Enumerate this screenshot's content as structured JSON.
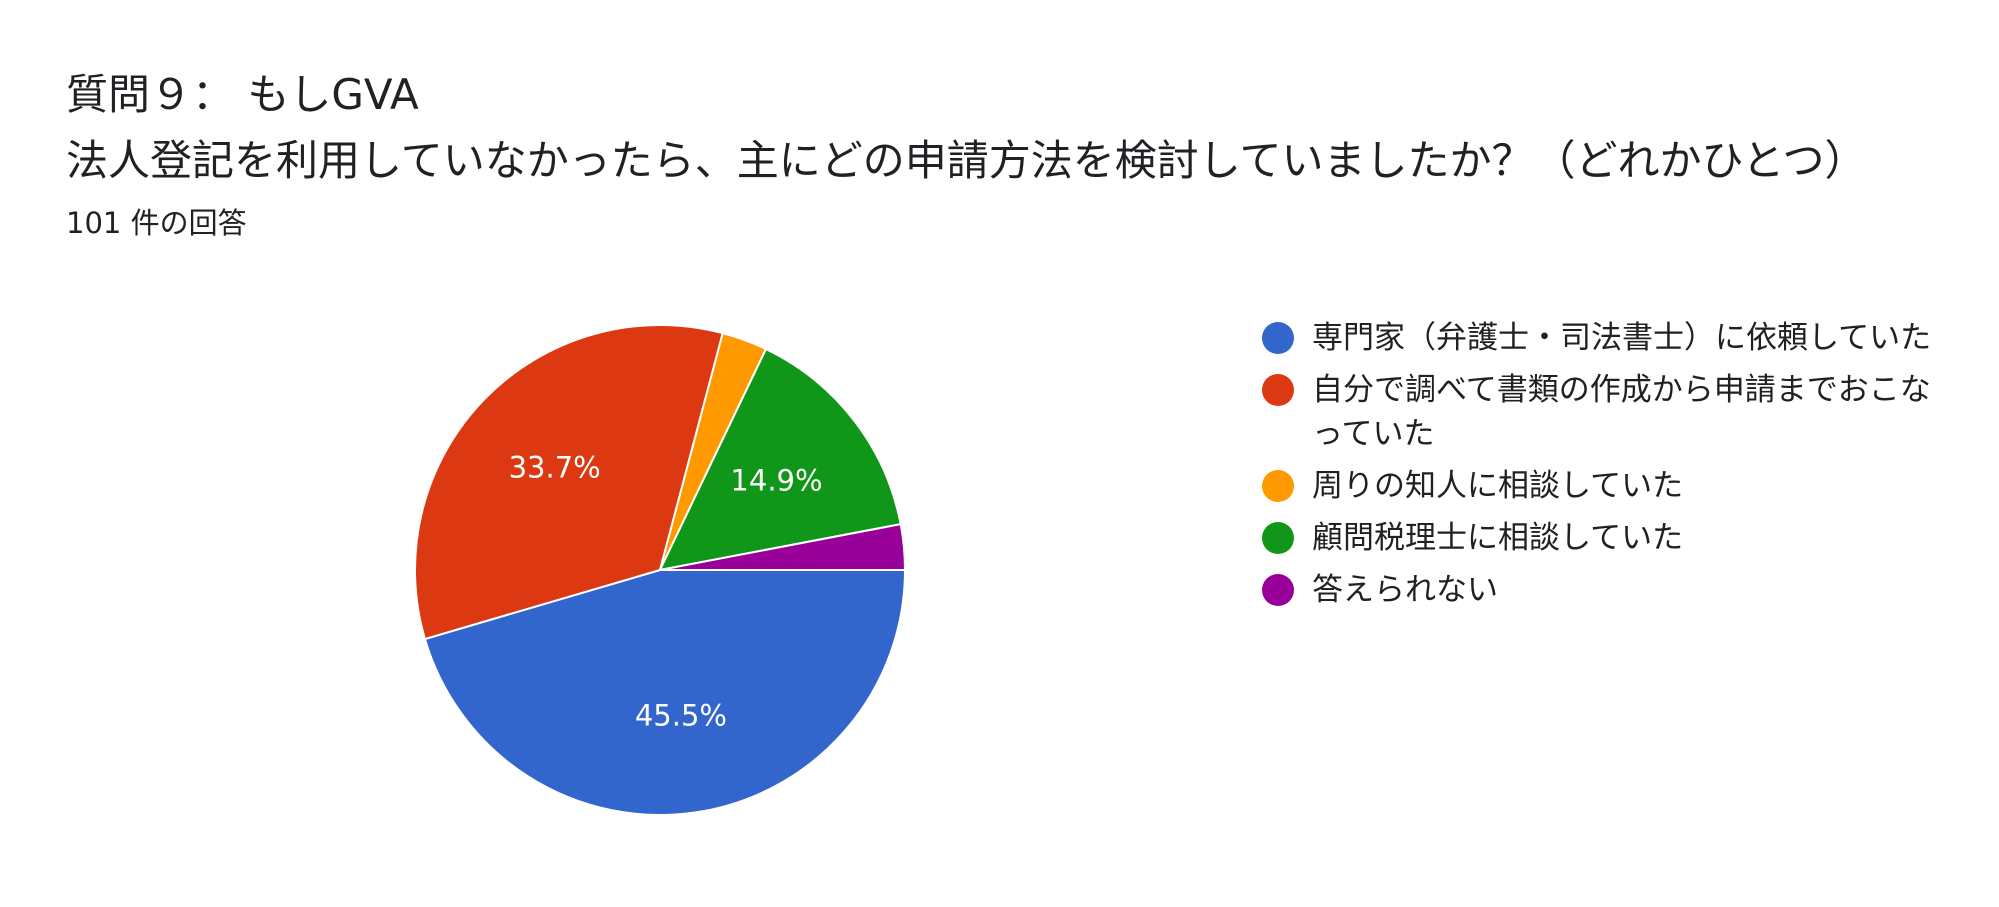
{
  "header": {
    "title_line1": "質問９： もしGVA",
    "title_line2": "法人登記を利用していなかったら、主にどの申請方法を検討していましたか？（どれかひとつ）",
    "response_count": "101 件の回答"
  },
  "chart_data": {
    "type": "pie",
    "title": "質問９： もしGVA 法人登記を利用していなかったら、主にどの申請方法を検討していましたか？（どれかひとつ）",
    "total_responses": 101,
    "slices": [
      {
        "label": "専門家（弁護士・司法書士）に依頼していた",
        "value": 45.5,
        "display": "45.5%",
        "color": "#3366cc"
      },
      {
        "label": "自分で調べて書類の作成から申請までおこなっていた",
        "value": 33.7,
        "display": "33.7%",
        "color": "#dc3912"
      },
      {
        "label": "周りの知人に相談していた",
        "value": 3.0,
        "display": "",
        "color": "#ff9900"
      },
      {
        "label": "顧問税理士に相談していた",
        "value": 14.9,
        "display": "14.9%",
        "color": "#109618"
      },
      {
        "label": "答えられない",
        "value": 3.0,
        "display": "",
        "color": "#990099"
      }
    ],
    "legend_position": "right"
  }
}
